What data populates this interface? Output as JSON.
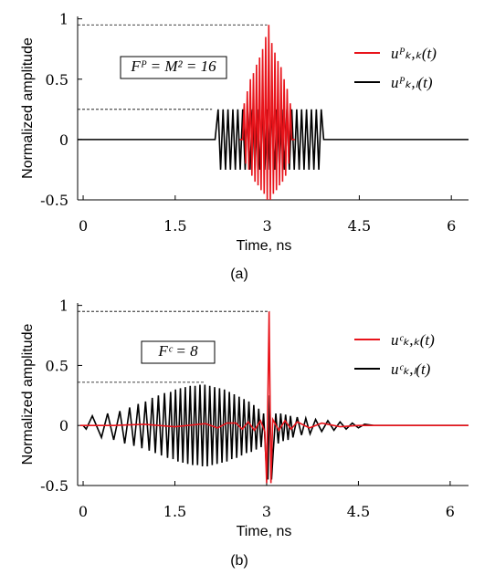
{
  "chart_data": [
    {
      "type": "line",
      "caption": "(a)",
      "xlabel": "Time, ns",
      "ylabel": "Normalized amplitude",
      "xlim": [
        -0.09,
        6.28
      ],
      "ylim": [
        -0.5,
        1.02
      ],
      "xticks": [
        0,
        1.5,
        3,
        4.5,
        6
      ],
      "yticks": [
        -0.5,
        0,
        0.5,
        1
      ],
      "annotation": "Fᴾ = M² = 16",
      "reference_lines": [
        {
          "y": 0.95,
          "x": [
            -0.09,
            3.0
          ]
        },
        {
          "y": 0.25,
          "x": [
            -0.09,
            2.1
          ]
        }
      ],
      "series": [
        {
          "name": "uᴾₖ,ₖ(t)",
          "color": "#e8141b",
          "x": [
            2.55,
            2.6,
            2.625,
            2.65,
            2.675,
            2.7,
            2.725,
            2.75,
            2.775,
            2.8,
            2.825,
            2.85,
            2.875,
            2.9,
            2.925,
            2.95,
            2.975,
            3.0,
            3.025,
            3.05,
            3.075,
            3.1,
            3.125,
            3.15,
            3.175,
            3.2,
            3.225,
            3.25,
            3.275,
            3.3,
            3.325,
            3.35,
            3.375,
            3.4,
            3.45
          ],
          "values": [
            0,
            0,
            0.3,
            -0.2,
            0.4,
            -0.25,
            0.5,
            -0.3,
            0.55,
            -0.35,
            0.62,
            -0.38,
            0.68,
            -0.42,
            0.75,
            -0.45,
            0.85,
            -0.5,
            0.95,
            -0.5,
            0.8,
            -0.45,
            0.72,
            -0.42,
            0.65,
            -0.38,
            0.6,
            -0.35,
            0.5,
            -0.3,
            0.42,
            -0.2,
            0.3,
            0,
            0
          ]
        },
        {
          "name": "uᴾₖ,ₗ(t)",
          "color": "#000000",
          "x": [
            -0.09,
            2.15,
            2.2,
            2.24,
            2.28,
            2.32,
            2.36,
            2.4,
            2.44,
            2.48,
            2.52,
            2.56,
            2.6,
            2.64,
            2.68,
            2.72,
            2.76,
            2.8,
            2.84,
            2.88,
            2.92,
            2.96,
            3.0,
            3.04,
            3.08,
            3.12,
            3.16,
            3.2,
            3.24,
            3.28,
            3.32,
            3.36,
            3.4,
            3.44,
            3.48,
            3.52,
            3.56,
            3.6,
            3.64,
            3.68,
            3.72,
            3.76,
            3.8,
            3.84,
            3.88,
            3.92,
            6.28
          ],
          "values": [
            0,
            0,
            0.25,
            -0.25,
            0.25,
            -0.25,
            0.25,
            -0.25,
            0.25,
            -0.25,
            0.25,
            -0.25,
            0.25,
            -0.25,
            0.25,
            -0.25,
            0.25,
            -0.25,
            0.25,
            -0.25,
            0.25,
            -0.25,
            0.25,
            -0.25,
            0.25,
            -0.25,
            0.25,
            -0.25,
            0.25,
            -0.25,
            0.25,
            -0.25,
            0.25,
            -0.25,
            0.25,
            -0.25,
            0.25,
            -0.25,
            0.25,
            -0.25,
            0.25,
            -0.25,
            0.25,
            -0.25,
            0.25,
            0,
            0
          ]
        }
      ]
    },
    {
      "type": "line",
      "caption": "(b)",
      "xlabel": "Time, ns",
      "ylabel": "Normalized amplitude",
      "xlim": [
        -0.09,
        6.3
      ],
      "ylim": [
        -0.5,
        1.02
      ],
      "xticks": [
        0,
        1.5,
        3,
        4.5,
        6
      ],
      "yticks": [
        -0.5,
        0,
        0.5,
        1
      ],
      "annotation": "Fᶜ = 8",
      "reference_lines": [
        {
          "y": 0.95,
          "x": [
            -0.09,
            3.05
          ]
        },
        {
          "y": 0.36,
          "x": [
            -0.09,
            2.0
          ]
        }
      ],
      "series": [
        {
          "name": "uᶜₖ,ₖ(t)",
          "color": "#e8141b",
          "x": [
            -0.05,
            0.5,
            1.0,
            1.5,
            2.0,
            2.2,
            2.35,
            2.5,
            2.6,
            2.7,
            2.8,
            2.9,
            2.97,
            3.0,
            3.04,
            3.07,
            3.1,
            3.2,
            3.3,
            3.4,
            3.5,
            3.7,
            3.9,
            4.2,
            4.5,
            6.3
          ],
          "values": [
            0,
            0,
            0.01,
            -0.01,
            0.015,
            -0.02,
            0.02,
            0.02,
            -0.03,
            0.03,
            -0.04,
            0.04,
            -0.05,
            -0.48,
            0.95,
            -0.48,
            0.05,
            -0.04,
            0.04,
            -0.03,
            0.03,
            -0.02,
            0.02,
            -0.01,
            0,
            0
          ]
        },
        {
          "name": "uᶜₖ,ₗ(t)",
          "color": "#000000",
          "x": [
            0,
            0.05,
            0.15,
            0.3,
            0.4,
            0.5,
            0.6,
            0.68,
            0.76,
            0.83,
            0.9,
            0.96,
            1.02,
            1.08,
            1.13,
            1.18,
            1.23,
            1.28,
            1.33,
            1.38,
            1.43,
            1.47,
            1.51,
            1.55,
            1.59,
            1.63,
            1.67,
            1.71,
            1.75,
            1.79,
            1.83,
            1.87,
            1.91,
            1.95,
            1.99,
            2.03,
            2.07,
            2.11,
            2.15,
            2.19,
            2.23,
            2.27,
            2.31,
            2.35,
            2.39,
            2.43,
            2.47,
            2.51,
            2.55,
            2.59,
            2.63,
            2.67,
            2.71,
            2.75,
            2.79,
            2.83,
            2.87,
            2.91,
            2.95,
            2.99,
            3.02,
            3.05,
            3.08,
            3.11,
            3.15,
            3.19,
            3.23,
            3.27,
            3.31,
            3.35,
            3.39,
            3.43,
            3.5,
            3.57,
            3.64,
            3.71,
            3.8,
            3.9,
            4.0,
            4.1,
            4.2,
            4.3,
            4.4,
            4.5,
            4.6,
            4.75,
            6.3
          ],
          "values": [
            0,
            -0.03,
            0.08,
            -0.1,
            0.1,
            -0.12,
            0.12,
            -0.15,
            0.15,
            -0.17,
            0.18,
            -0.19,
            0.2,
            -0.21,
            0.23,
            -0.23,
            0.25,
            -0.25,
            0.27,
            -0.27,
            0.28,
            -0.28,
            0.3,
            -0.3,
            0.31,
            -0.31,
            0.32,
            -0.32,
            0.33,
            -0.33,
            0.33,
            -0.33,
            0.34,
            -0.34,
            0.34,
            -0.34,
            0.33,
            -0.33,
            0.32,
            -0.32,
            0.31,
            -0.31,
            0.3,
            -0.3,
            0.28,
            -0.28,
            0.26,
            -0.27,
            0.24,
            -0.25,
            0.22,
            -0.23,
            0.2,
            -0.22,
            0.17,
            -0.2,
            0.14,
            -0.18,
            0.1,
            -0.3,
            -0.45,
            0.25,
            -0.45,
            -0.2,
            0.1,
            -0.15,
            0.1,
            -0.13,
            0.09,
            -0.12,
            0.08,
            -0.1,
            0.07,
            -0.08,
            0.06,
            -0.07,
            0.05,
            -0.05,
            0.04,
            -0.04,
            0.03,
            -0.03,
            0.02,
            -0.02,
            0.01,
            0,
            0
          ]
        }
      ]
    }
  ]
}
